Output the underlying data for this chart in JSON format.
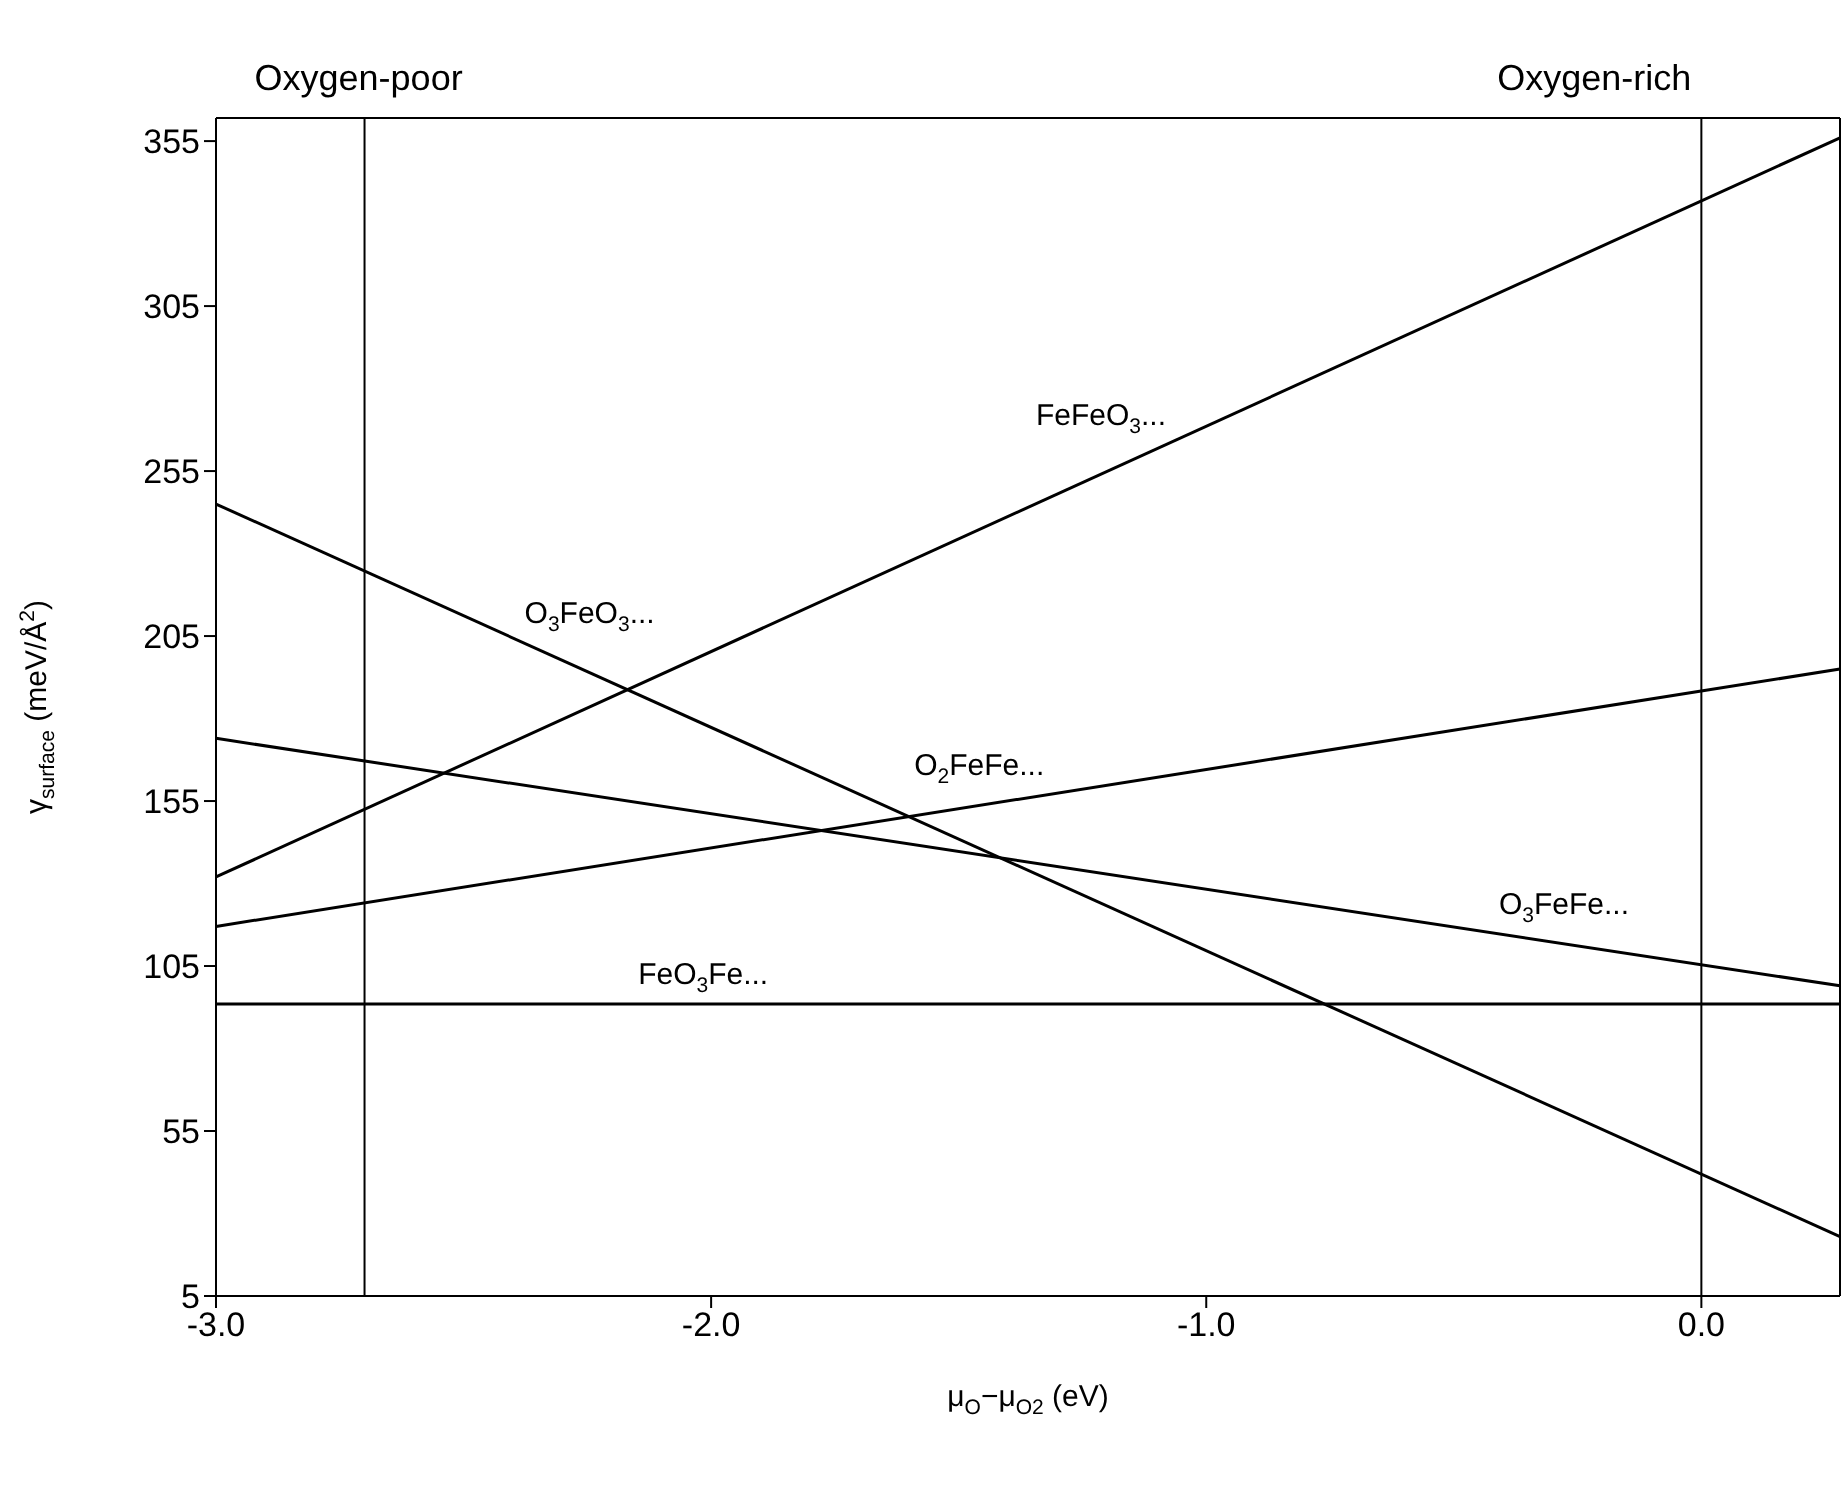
{
  "chart_data": {
    "type": "line",
    "xlabel": "μ$_{O}$−μ$_{O2}$ (eV)",
    "ylabel": "γ$_{surface}$ (meV/Å$^{2}$)",
    "xlim": [
      -3.0,
      0.28
    ],
    "xticks": [
      {
        "value": -3,
        "label": "-3.0"
      },
      {
        "value": -2,
        "label": "-2.0"
      },
      {
        "value": -1,
        "label": "-1.0"
      },
      {
        "value": 0,
        "label": "0.0"
      }
    ],
    "ylim": [
      5,
      362
    ],
    "yticks": [
      5,
      55,
      105,
      155,
      205,
      255,
      305,
      355
    ],
    "grid": false,
    "marker": "none",
    "line_style": "solid",
    "x": [
      -3.0,
      0.28
    ],
    "series": [
      {
        "name": "FeFeO$_{3}$...",
        "color": "#000000",
        "values": [
          132,
          356
        ]
      },
      {
        "name": "O$_{3}$FeO$_{3}$...",
        "color": "#000000",
        "values": [
          245,
          23
        ]
      },
      {
        "name": "O$_{3}$FeFe...",
        "color": "#000000",
        "values": [
          174,
          99
        ]
      },
      {
        "name": "O$_{2}$FeFe...",
        "color": "#000000",
        "values": [
          117,
          195
        ]
      },
      {
        "name": "FeO$_{3}$Fe...",
        "color": "#000000",
        "values": [
          93.5,
          93.5
        ]
      }
    ],
    "ref_lines": [
      {
        "axis": "x",
        "value": -2.7,
        "label": "Oxygen-poor",
        "color": "#000000"
      },
      {
        "axis": "x",
        "value": 0,
        "label": "Oxygen-rich",
        "color": "#000000"
      }
    ]
  }
}
